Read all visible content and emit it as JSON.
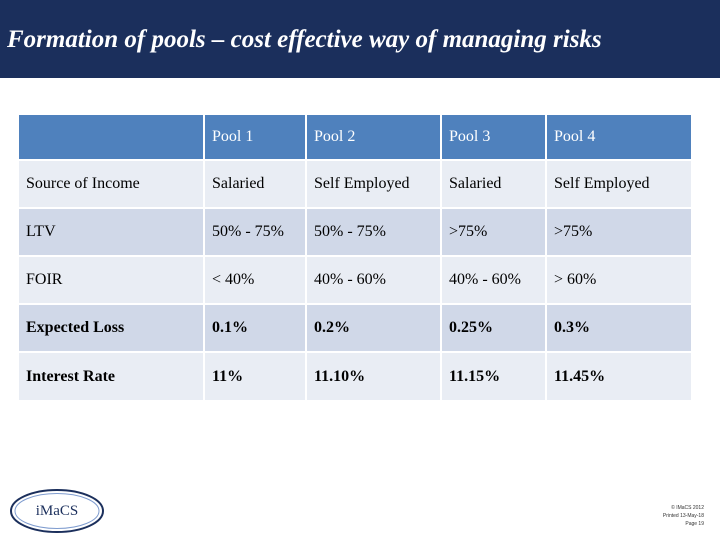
{
  "slide": {
    "title": "Formation of pools – cost effective way of managing risks"
  },
  "table": {
    "headers": [
      "",
      "Pool 1",
      "Pool 2",
      "Pool 3",
      "Pool 4"
    ],
    "rows": [
      {
        "label": "Source of Income",
        "cells": [
          "Salaried",
          "Self Employed",
          "Salaried",
          "Self Employed"
        ]
      },
      {
        "label": "LTV",
        "cells": [
          "50% - 75%",
          "50% - 75%",
          ">75%",
          ">75%"
        ]
      },
      {
        "label": "FOIR",
        "cells": [
          "< 40%",
          "40% - 60%",
          "40% - 60%",
          "> 60%"
        ]
      },
      {
        "label": "Expected Loss",
        "cells": [
          "0.1%",
          "0.2%",
          "0.25%",
          "0.3%"
        ]
      },
      {
        "label": "Interest Rate",
        "cells": [
          "11%",
          "11.10%",
          "11.15%",
          "11.45%"
        ]
      }
    ]
  },
  "logo": {
    "text": "iMaCS"
  },
  "footer": {
    "copyright": "© IMaCS 2012",
    "printed": "Printed 13-May-18",
    "page": "Page 19"
  },
  "colors": {
    "title_bar": "#1b2f5c",
    "header_row": "#4f81bd",
    "row_light": "#e9edf4",
    "row_dark": "#d0d8e8"
  }
}
